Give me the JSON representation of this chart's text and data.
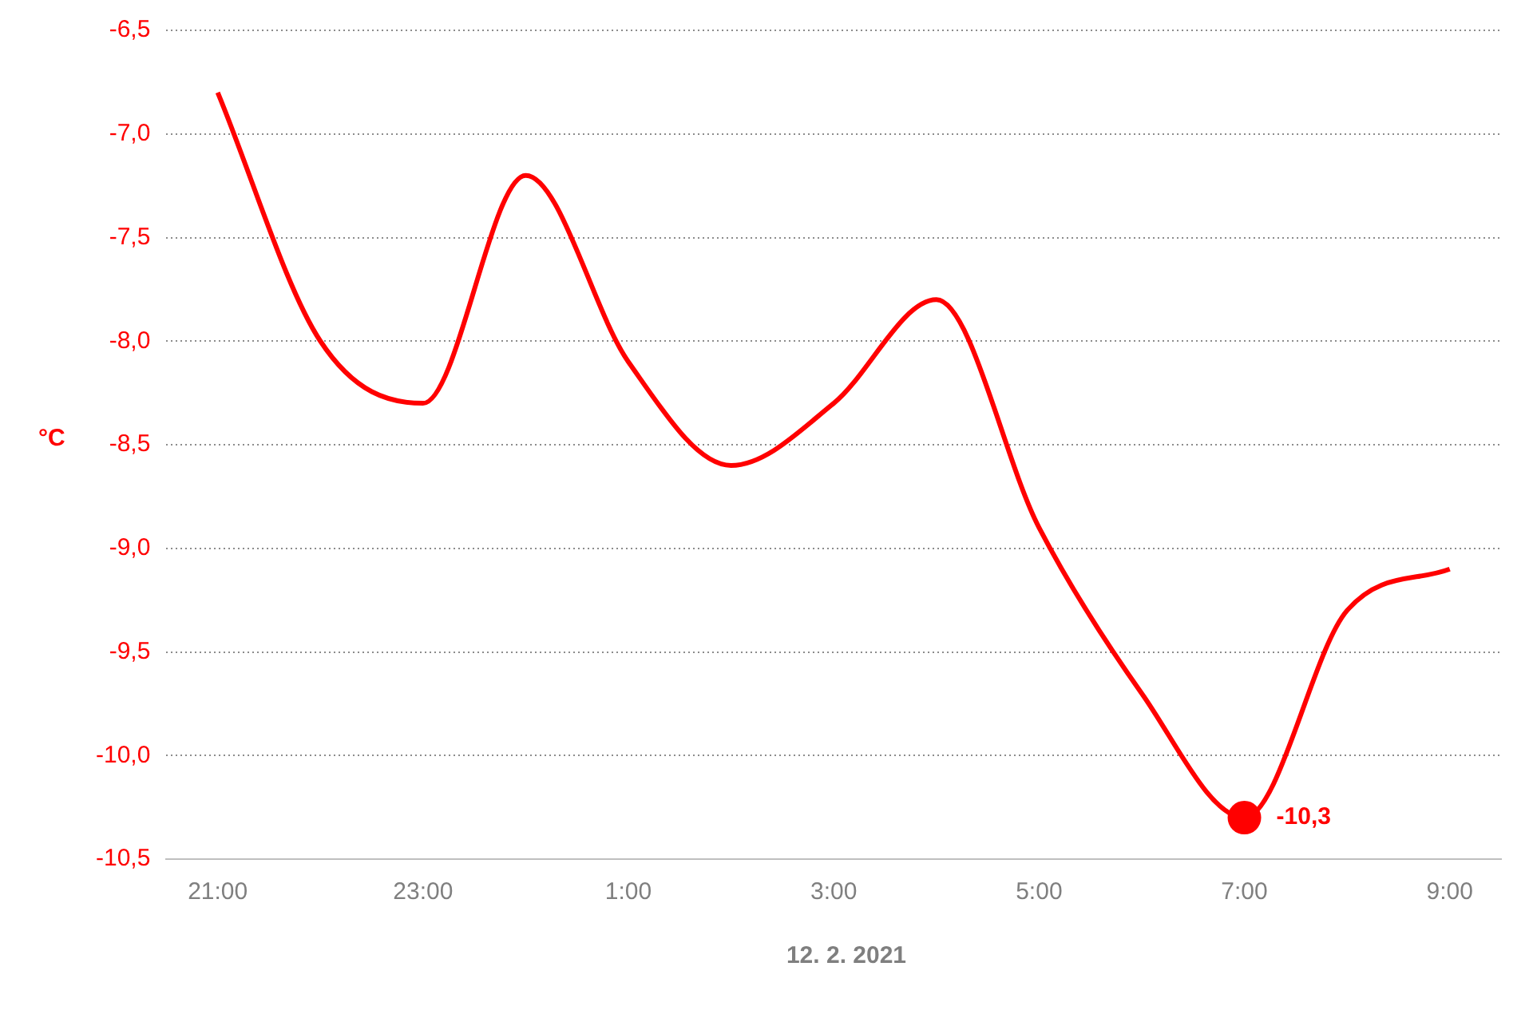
{
  "chart_data": {
    "type": "line",
    "xlabel": "12. 2. 2021",
    "ylabel": "°C",
    "categories": [
      "21:00",
      null,
      "23:00",
      null,
      "1:00",
      null,
      "3:00",
      null,
      "5:00",
      null,
      "7:00",
      null,
      "9:00"
    ],
    "series": [
      {
        "color": "#ff0000",
        "values": [
          -6.8,
          -8.0,
          -8.3,
          -7.2,
          -8.1,
          -8.6,
          -8.3,
          -7.8,
          -8.9,
          -9.7,
          -10.3,
          -9.3,
          -9.1
        ],
        "value_labels": [
          null,
          null,
          null,
          null,
          null,
          null,
          null,
          null,
          null,
          null,
          "-10,3",
          null,
          null
        ]
      }
    ],
    "ylim": [
      -10.5,
      -6.5
    ],
    "yticks": [
      {
        "value": -10.5,
        "label": "-10,5"
      },
      {
        "value": -10,
        "label": "-10,0"
      },
      {
        "value": -9.5,
        "label": "-9,5"
      },
      {
        "value": -9,
        "label": "-9,0"
      },
      {
        "value": -8.5,
        "label": "-8,5"
      },
      {
        "value": -8,
        "label": "-8,0"
      },
      {
        "value": -7.5,
        "label": "-7,5"
      },
      {
        "value": -7,
        "label": "-7,0"
      },
      {
        "value": -6.5,
        "label": "-6,5"
      }
    ],
    "grid": "y",
    "legend": false,
    "line_style": "solid"
  }
}
